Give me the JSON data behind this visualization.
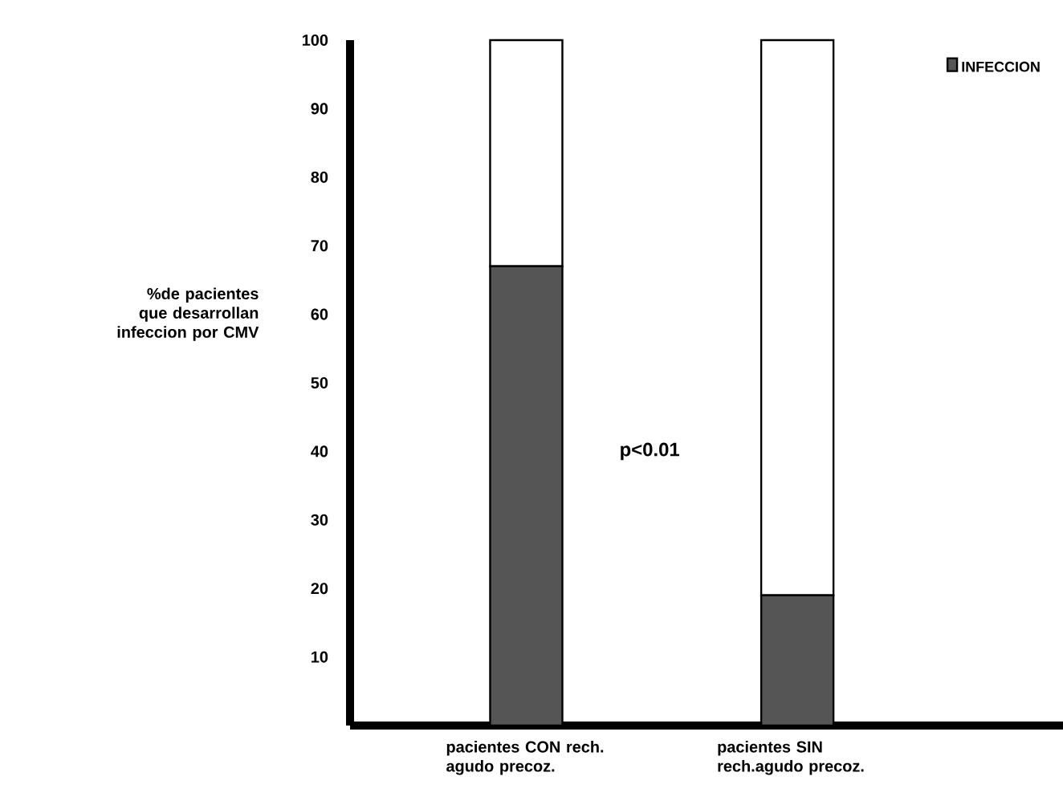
{
  "chart_data": {
    "type": "bar",
    "stacked": true,
    "ylabel": "%de pacientes que desarrollan infeccion por CMV",
    "categories": [
      "pacientes CON rech. agudo precoz.",
      "pacientes SIN rech.agudo precoz."
    ],
    "series": [
      {
        "name": "INFECCION",
        "color": "#555555",
        "values": [
          67,
          19
        ]
      },
      {
        "color": "#ffffff",
        "values": [
          33,
          81
        ]
      }
    ],
    "ylim": [
      0,
      100
    ],
    "yticks": [
      10,
      20,
      30,
      40,
      50,
      60,
      70,
      80,
      90,
      100
    ],
    "legend": "top right",
    "grid": false,
    "annotations": [
      "p<0.01"
    ]
  }
}
